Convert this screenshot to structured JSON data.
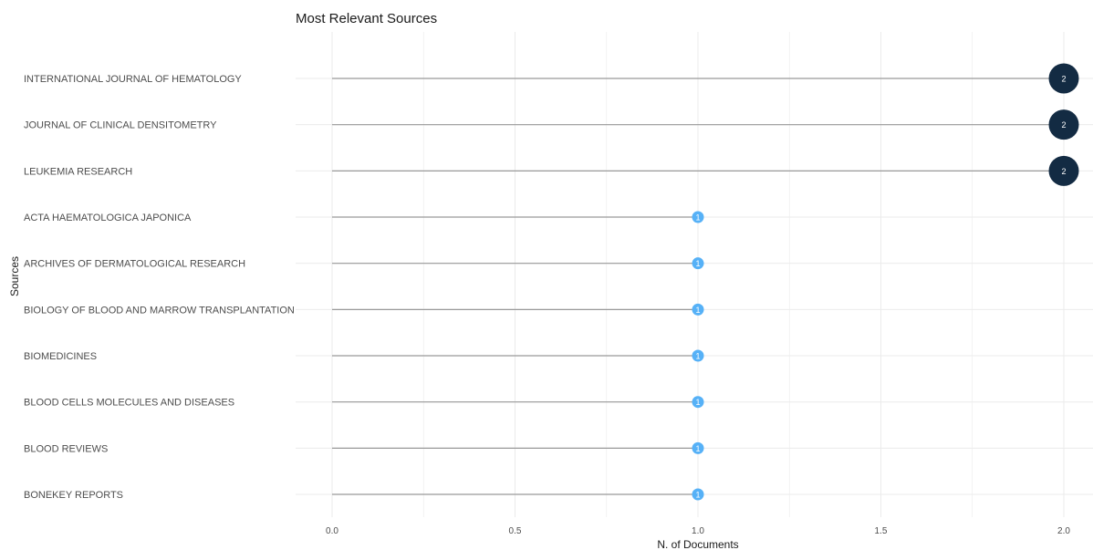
{
  "chart_data": {
    "type": "lollipop",
    "title": "Most Relevant Sources",
    "xlabel": "N. of Documents",
    "ylabel": "Sources",
    "categories": [
      "INTERNATIONAL JOURNAL OF HEMATOLOGY",
      "JOURNAL OF CLINICAL DENSITOMETRY",
      "LEUKEMIA RESEARCH",
      "ACTA HAEMATOLOGICA JAPONICA",
      "ARCHIVES OF DERMATOLOGICAL RESEARCH",
      "BIOLOGY OF BLOOD AND MARROW TRANSPLANTATION",
      "BIOMEDICINES",
      "BLOOD CELLS MOLECULES AND DISEASES",
      "BLOOD REVIEWS",
      "BONEKEY REPORTS"
    ],
    "values": [
      2,
      2,
      2,
      1,
      1,
      1,
      1,
      1,
      1,
      1
    ],
    "xlim": [
      0,
      2
    ],
    "xticks": [
      "0.0",
      "0.5",
      "1.0",
      "1.5",
      "2.0"
    ],
    "grid": true,
    "colors": {
      "high": "#132b43",
      "low": "#56b1f7",
      "stem": "#999999",
      "grid": "#ebebeb"
    }
  }
}
